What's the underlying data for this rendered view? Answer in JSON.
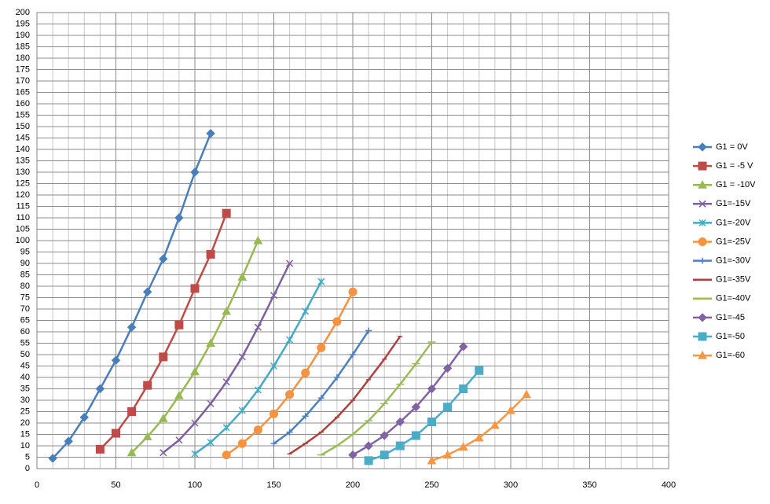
{
  "chart_data": {
    "type": "line",
    "xlim": [
      0,
      400
    ],
    "xticks": [
      0,
      50,
      100,
      150,
      200,
      250,
      300,
      350,
      400
    ],
    "x_minor_gridlines": [
      10,
      20,
      30,
      40,
      60,
      70,
      80,
      90,
      110,
      120,
      130,
      140,
      160,
      170,
      180,
      190,
      210,
      220,
      230,
      240,
      260,
      270,
      280,
      290,
      310,
      320,
      330,
      340,
      360,
      370,
      380,
      390
    ],
    "ylim": [
      0,
      200
    ],
    "yticks": [
      0,
      5,
      10,
      15,
      20,
      25,
      30,
      35,
      40,
      45,
      50,
      55,
      60,
      65,
      70,
      75,
      80,
      85,
      90,
      95,
      100,
      105,
      110,
      115,
      120,
      125,
      130,
      135,
      140,
      145,
      150,
      155,
      160,
      165,
      170,
      175,
      180,
      185,
      190,
      195,
      200
    ],
    "grid": true,
    "legend_position": "right",
    "series": [
      {
        "name": "G1 = 0V",
        "color": "#4a7ebb",
        "marker": "diamond",
        "x": [
          10,
          20,
          30,
          40,
          50,
          60,
          70,
          80,
          90,
          100,
          110
        ],
        "values": [
          4.5,
          12,
          22.5,
          35,
          47.5,
          62,
          77.5,
          92,
          110,
          130,
          147
        ]
      },
      {
        "name": "G1 = -5 V",
        "color": "#be4b48",
        "marker": "square",
        "x": [
          40,
          50,
          60,
          70,
          80,
          90,
          100,
          110,
          120
        ],
        "values": [
          8.5,
          15.5,
          25,
          36.5,
          49,
          63,
          79,
          94,
          112
        ]
      },
      {
        "name": "G1 = -10V",
        "color": "#98b954",
        "marker": "triangle",
        "x": [
          60,
          70,
          80,
          90,
          100,
          110,
          120,
          130,
          140
        ],
        "values": [
          7,
          14,
          22,
          32,
          42.5,
          55,
          69,
          84,
          100
        ]
      },
      {
        "name": "G1=-15V",
        "color": "#7d60a0",
        "marker": "x",
        "x": [
          80,
          90,
          100,
          110,
          120,
          130,
          140,
          150,
          160
        ],
        "values": [
          7,
          12.5,
          20,
          28.5,
          38,
          49,
          62,
          76,
          90
        ]
      },
      {
        "name": "G1=-20V",
        "color": "#46aac5",
        "marker": "star",
        "x": [
          100,
          110,
          120,
          130,
          140,
          150,
          160,
          170,
          180
        ],
        "values": [
          6.5,
          11.5,
          18,
          25.5,
          34.5,
          45,
          56.5,
          69,
          82
        ]
      },
      {
        "name": "G1=-25V",
        "color": "#f69240",
        "marker": "circle",
        "x": [
          120,
          130,
          140,
          150,
          160,
          170,
          180,
          190,
          200
        ],
        "values": [
          6,
          11,
          17,
          24,
          32.5,
          42,
          53,
          64.5,
          77.5
        ]
      },
      {
        "name": "G1=-30V",
        "color": "#4f81bd",
        "marker": "plus",
        "x": [
          150,
          160,
          170,
          180,
          190,
          200,
          210
        ],
        "values": [
          11,
          16,
          23,
          31,
          40,
          50,
          60.5
        ]
      },
      {
        "name": "G1=-35V",
        "color": "#b0403f",
        "marker": "dash",
        "x": [
          160,
          170,
          180,
          190,
          200,
          210,
          220,
          230
        ],
        "values": [
          6.5,
          11,
          16,
          22.5,
          30,
          39,
          48,
          58
        ]
      },
      {
        "name": "G1=-40V",
        "color": "#9bbb59",
        "marker": "longdash",
        "x": [
          180,
          190,
          200,
          210,
          220,
          230,
          240,
          250
        ],
        "values": [
          6,
          10,
          15,
          21,
          28.5,
          37,
          46,
          55.5
        ]
      },
      {
        "name": "G1=-45",
        "color": "#8064a2",
        "marker": "diamond",
        "x": [
          200,
          210,
          220,
          230,
          240,
          250,
          260,
          270
        ],
        "values": [
          6,
          10,
          14.5,
          20.5,
          27,
          35,
          44,
          53.5
        ]
      },
      {
        "name": "G1=-50",
        "color": "#4bacc6",
        "marker": "square",
        "x": [
          210,
          220,
          230,
          240,
          250,
          260,
          270,
          280
        ],
        "values": [
          3.5,
          6,
          10,
          14.5,
          20.5,
          27,
          35,
          43
        ]
      },
      {
        "name": "G1=-60",
        "color": "#f79646",
        "marker": "triangle",
        "x": [
          250,
          260,
          270,
          280,
          290,
          300,
          310
        ],
        "values": [
          3.5,
          6,
          9.5,
          13.5,
          19,
          25.5,
          32.5
        ]
      }
    ]
  }
}
